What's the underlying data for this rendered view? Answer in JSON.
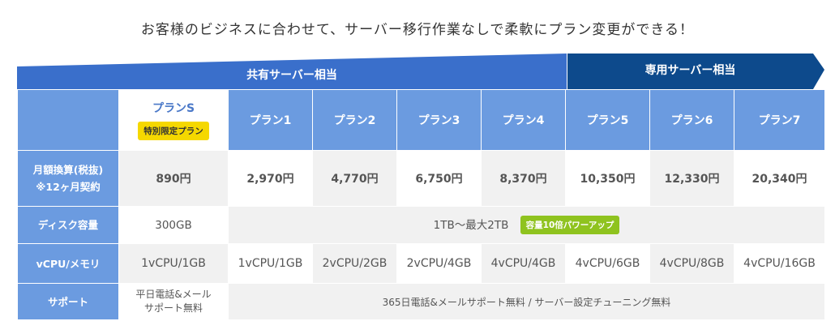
{
  "headline": "お客様のビジネスに合わせて、サーバー移行作業なしで柔軟にプラン変更ができる！",
  "banner": {
    "shared_label": "共有サーバー相当",
    "dedicated_label": "専用サーバー相当",
    "colors": {
      "shared": "#3a6fcb",
      "dedicated": "#0d4a8c"
    }
  },
  "plans": [
    {
      "name": "プランS",
      "badge": "特別限定プラン"
    },
    {
      "name": "プラン1"
    },
    {
      "name": "プラン2"
    },
    {
      "name": "プラン3"
    },
    {
      "name": "プラン4"
    },
    {
      "name": "プラン5"
    },
    {
      "name": "プラン6"
    },
    {
      "name": "プラン7"
    }
  ],
  "rows": {
    "price": {
      "label_line1": "月額換算(税抜)",
      "label_line2": "※12ヶ月契約",
      "values": [
        "890円",
        "2,970円",
        "4,770円",
        "6,750円",
        "8,370円",
        "10,350円",
        "12,330円",
        "20,340円"
      ]
    },
    "disk": {
      "label": "ディスク容量",
      "plan_s": "300GB",
      "others": "1TB〜最大2TB",
      "badge": "容量10倍パワーアップ"
    },
    "cpu": {
      "label": "vCPU/メモリ",
      "values": [
        "1vCPU/1GB",
        "1vCPU/1GB",
        "2vCPU/2GB",
        "2vCPU/4GB",
        "4vCPU/4GB",
        "4vCPU/6GB",
        "4vCPU/8GB",
        "4vCPU/16GB"
      ]
    },
    "support": {
      "label": "サポート",
      "plan_s_line1": "平日電話&メール",
      "plan_s_line2": "サポート無料",
      "others": "365日電話&メールサポート無料 / サーバー設定チューニング無料"
    }
  },
  "colors": {
    "header_blue": "#6b9be0",
    "plan_s_text": "#4a78c8",
    "badge_yellow": "#f5d800",
    "badge_green": "#8fc31f",
    "cell_gray": "#f1f1f1"
  }
}
